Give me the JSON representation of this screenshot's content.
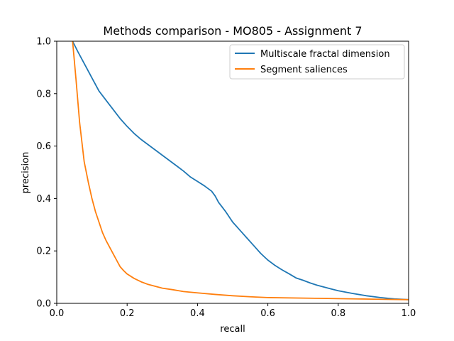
{
  "chart_data": {
    "type": "line",
    "title": "Methods comparison - MO805 - Assignment 7",
    "xlabel": "recall",
    "ylabel": "precision",
    "xlim": [
      0.0,
      1.0
    ],
    "ylim": [
      0.0,
      1.0
    ],
    "xticks": [
      "0.0",
      "0.2",
      "0.4",
      "0.6",
      "0.8",
      "1.0"
    ],
    "yticks": [
      "0.0",
      "0.2",
      "0.4",
      "0.6",
      "0.8",
      "1.0"
    ],
    "grid": false,
    "legend_position": "top-right",
    "series": [
      {
        "name": "Multiscale fractal dimension",
        "color": "#1f77b4",
        "points": [
          [
            0.045,
            1.0
          ],
          [
            0.06,
            0.96
          ],
          [
            0.08,
            0.91
          ],
          [
            0.1,
            0.86
          ],
          [
            0.12,
            0.81
          ],
          [
            0.14,
            0.775
          ],
          [
            0.16,
            0.74
          ],
          [
            0.18,
            0.705
          ],
          [
            0.2,
            0.675
          ],
          [
            0.22,
            0.648
          ],
          [
            0.24,
            0.625
          ],
          [
            0.26,
            0.605
          ],
          [
            0.28,
            0.585
          ],
          [
            0.3,
            0.565
          ],
          [
            0.32,
            0.545
          ],
          [
            0.34,
            0.525
          ],
          [
            0.36,
            0.505
          ],
          [
            0.38,
            0.482
          ],
          [
            0.4,
            0.465
          ],
          [
            0.42,
            0.448
          ],
          [
            0.44,
            0.428
          ],
          [
            0.45,
            0.41
          ],
          [
            0.46,
            0.385
          ],
          [
            0.48,
            0.35
          ],
          [
            0.5,
            0.31
          ],
          [
            0.52,
            0.28
          ],
          [
            0.54,
            0.25
          ],
          [
            0.56,
            0.22
          ],
          [
            0.58,
            0.19
          ],
          [
            0.6,
            0.165
          ],
          [
            0.62,
            0.145
          ],
          [
            0.64,
            0.128
          ],
          [
            0.66,
            0.113
          ],
          [
            0.68,
            0.097
          ],
          [
            0.7,
            0.088
          ],
          [
            0.72,
            0.078
          ],
          [
            0.74,
            0.069
          ],
          [
            0.76,
            0.062
          ],
          [
            0.78,
            0.055
          ],
          [
            0.8,
            0.048
          ],
          [
            0.84,
            0.038
          ],
          [
            0.88,
            0.029
          ],
          [
            0.92,
            0.022
          ],
          [
            0.96,
            0.017
          ],
          [
            1.0,
            0.014
          ]
        ]
      },
      {
        "name": "Segment saliences",
        "color": "#ff7f0e",
        "points": [
          [
            0.045,
            1.0
          ],
          [
            0.055,
            0.85
          ],
          [
            0.065,
            0.69
          ],
          [
            0.078,
            0.54
          ],
          [
            0.09,
            0.46
          ],
          [
            0.1,
            0.4
          ],
          [
            0.11,
            0.35
          ],
          [
            0.12,
            0.31
          ],
          [
            0.13,
            0.27
          ],
          [
            0.14,
            0.24
          ],
          [
            0.16,
            0.19
          ],
          [
            0.17,
            0.165
          ],
          [
            0.18,
            0.14
          ],
          [
            0.19,
            0.125
          ],
          [
            0.2,
            0.112
          ],
          [
            0.22,
            0.095
          ],
          [
            0.24,
            0.082
          ],
          [
            0.26,
            0.072
          ],
          [
            0.28,
            0.065
          ],
          [
            0.3,
            0.058
          ],
          [
            0.33,
            0.052
          ],
          [
            0.36,
            0.045
          ],
          [
            0.4,
            0.04
          ],
          [
            0.45,
            0.034
          ],
          [
            0.5,
            0.029
          ],
          [
            0.55,
            0.025
          ],
          [
            0.6,
            0.022
          ],
          [
            0.7,
            0.02
          ],
          [
            0.8,
            0.018
          ],
          [
            0.9,
            0.016
          ],
          [
            1.0,
            0.014
          ]
        ]
      }
    ]
  }
}
